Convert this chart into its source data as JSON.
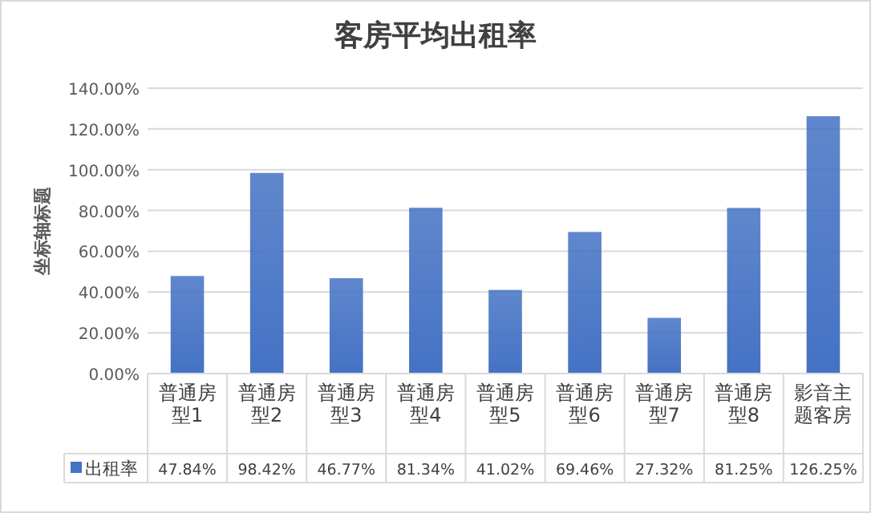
{
  "chart_data": {
    "type": "bar",
    "title": "客房平均出租率",
    "ylabel": "坐标轴标题",
    "categories": [
      "普通房型1",
      "普通房型2",
      "普通房型3",
      "普通房型4",
      "普通房型5",
      "普通房型6",
      "普通房型7",
      "普通房型8",
      "影音主题客房"
    ],
    "series": [
      {
        "name": "出租率",
        "color": "#4472c4",
        "values": [
          47.84,
          98.42,
          46.77,
          81.34,
          41.02,
          69.46,
          27.32,
          81.25,
          126.25
        ],
        "value_labels": [
          "47.84%",
          "98.42%",
          "46.77%",
          "81.34%",
          "41.02%",
          "69.46%",
          "27.32%",
          "81.25%",
          "126.25%"
        ]
      }
    ],
    "ylim": [
      0,
      140
    ],
    "yticks": [
      {
        "value": 0,
        "label": "0.00%"
      },
      {
        "value": 20,
        "label": "20.00%"
      },
      {
        "value": 40,
        "label": "40.00%"
      },
      {
        "value": 60,
        "label": "60.00%"
      },
      {
        "value": 80,
        "label": "80.00%"
      },
      {
        "value": 100,
        "label": "100.00%"
      },
      {
        "value": 120,
        "label": "120.00%"
      },
      {
        "value": 140,
        "label": "140.00%"
      }
    ],
    "grid": "y",
    "legend": "bottom"
  }
}
